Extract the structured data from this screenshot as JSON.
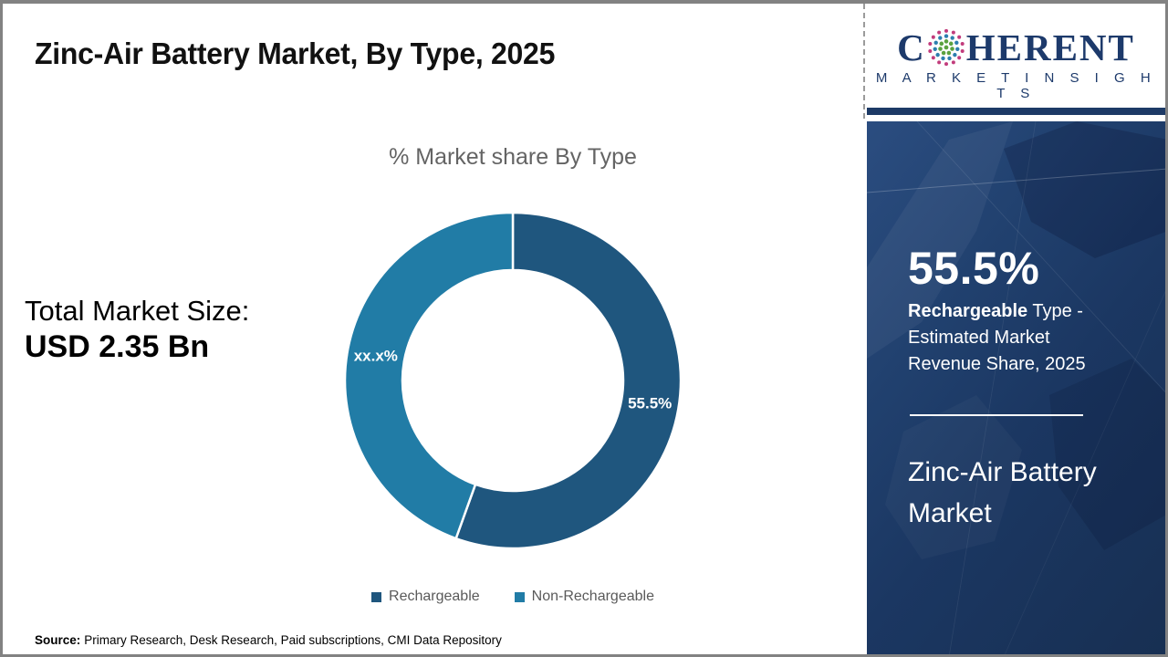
{
  "slide": {
    "title": "Zinc-Air Battery Market, By Type, 2025",
    "source": {
      "label": "Source:",
      "text": "Primary Research, Desk Research, Paid subscriptions, CMI Data Repository"
    }
  },
  "left_stat": {
    "label": "Total Market Size:",
    "value": "USD 2.35 Bn"
  },
  "brand": {
    "name_prefix": "C",
    "name_suffix": "HERENT",
    "tagline": "M A R K E T  I N S I G H T S",
    "color": "#1D3A6B"
  },
  "sidebar": {
    "headline_value": "55.5%",
    "subline_bold": "Rechargeable",
    "subline_rest": " Type - Estimated Market Revenue Share, 2025",
    "product_title": "Zinc-Air Battery Market",
    "bg_color": "#1C3A64"
  },
  "chart_data": {
    "type": "donut",
    "title": "% Market share By Type",
    "categories": [
      "Rechargeable",
      "Non-Rechargeable"
    ],
    "values": [
      55.5,
      44.5
    ],
    "slice_labels": [
      "55.5%",
      "xx.x%"
    ],
    "colors": [
      "#1F567E",
      "#217CA6"
    ],
    "start_angle_deg": -90,
    "direction": "clockwise",
    "inner_radius_ratio": 0.66,
    "legend_position": "bottom"
  }
}
